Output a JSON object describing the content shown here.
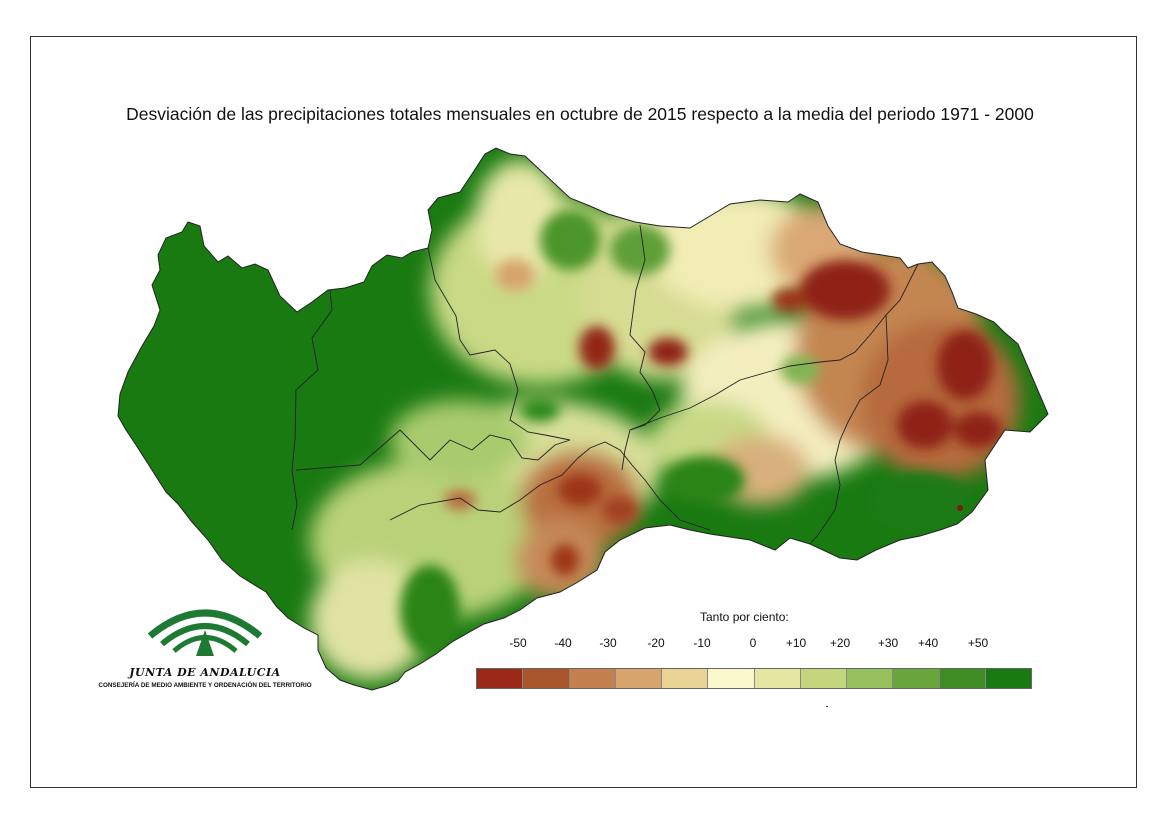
{
  "title": "Desviación de las precipitaciones totales mensuales en octubre de 2015 respecto a la media del periodo 1971 - 2000",
  "logo": {
    "name": "JUNTA DE ANDALUCIA",
    "subtitle": "CONSEJERÍA DE MEDIO AMBIENTE Y ORDENACIÓN DEL TERRITORIO",
    "color": "#1e7a32"
  },
  "legend": {
    "title": "Tanto por ciento:",
    "labels": [
      "-50",
      "-40",
      "-30",
      "-20",
      "-10",
      "0",
      "+10",
      "+20",
      "+30",
      "+40",
      "+50"
    ],
    "colors": [
      "#9a2a18",
      "#a9552c",
      "#c47f4f",
      "#d7a46e",
      "#ead495",
      "#fbf7cc",
      "#e2e6a0",
      "#c3d67e",
      "#95c05c",
      "#6aa53c",
      "#3f8c24",
      "#1a7a12"
    ]
  },
  "map": {
    "base_color": "#1a7a12",
    "outline_color": "#222222"
  }
}
